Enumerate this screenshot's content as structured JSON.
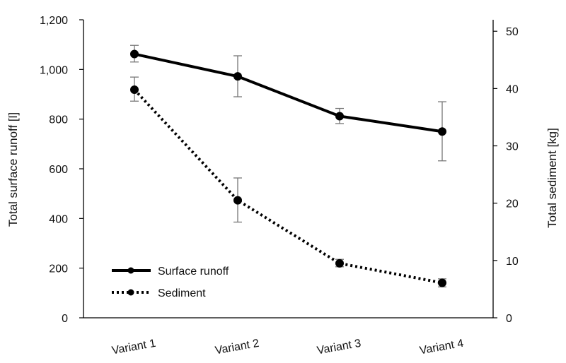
{
  "chart_data": {
    "type": "line",
    "categories": [
      "Variant 1",
      "Variant 2",
      "Variant 3",
      "Variant 4"
    ],
    "y_left": {
      "label": "Total surface runoff [l]",
      "lim": [
        0,
        1200
      ],
      "ticks": [
        "0",
        "200",
        "400",
        "600",
        "800",
        "1,000",
        "1,200"
      ],
      "tick_values": [
        0,
        200,
        400,
        600,
        800,
        1000,
        1200
      ]
    },
    "y_right": {
      "label": "Total sediment [kg]",
      "lim": [
        0,
        52
      ],
      "ticks": [
        "0",
        "10",
        "20",
        "30",
        "40",
        "50"
      ],
      "tick_values": [
        0,
        10,
        20,
        30,
        40,
        50
      ]
    },
    "series": [
      {
        "name": "Surface runoff",
        "axis": "left",
        "style": "solid",
        "values": [
          1062,
          972,
          812,
          750
        ],
        "error_low": [
          1030,
          890,
          782,
          632
        ],
        "error_high": [
          1097,
          1055,
          843,
          870
        ]
      },
      {
        "name": "Sediment",
        "axis": "right",
        "style": "dotted",
        "values": [
          39.8,
          20.5,
          9.5,
          6.1
        ],
        "error_low": [
          37.8,
          16.7,
          8.9,
          5.4
        ],
        "error_high": [
          42.0,
          24.4,
          10.2,
          6.8
        ]
      }
    ],
    "legend_position": "bottom-left",
    "grid": false,
    "colors": {
      "line": "#000000",
      "error_bar": "#777777"
    }
  }
}
